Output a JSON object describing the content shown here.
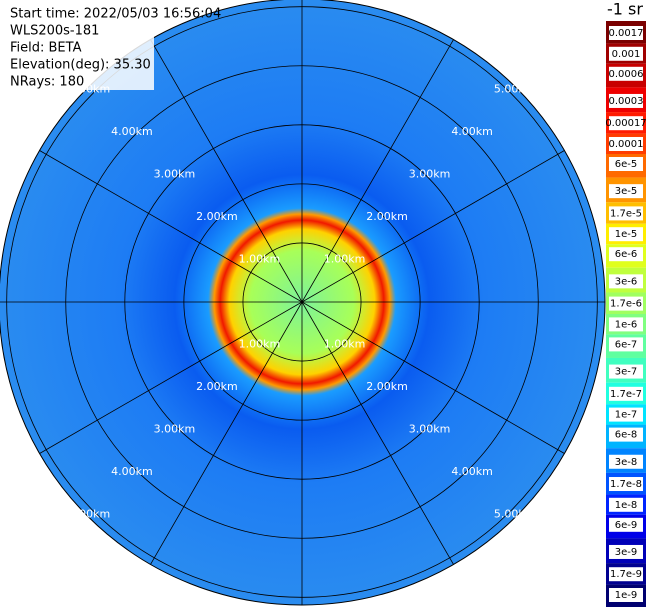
{
  "chart_data": {
    "type": "ppi",
    "info": [
      "Start time: 2022/05/03 16:56:04",
      "WLS200s-181",
      "Field: BETA",
      "Elevation(deg): 35.30",
      "NRays: 180"
    ],
    "rlim": [
      0,
      5.13
    ],
    "rticks": [
      {
        "value": 1,
        "label": "1.00km"
      },
      {
        "value": 2,
        "label": "2.00km"
      },
      {
        "value": 3,
        "label": "3.00km"
      },
      {
        "value": 4,
        "label": "4.00km"
      },
      {
        "value": 5,
        "label": "5.00km"
      }
    ],
    "colorbar": {
      "title": "-1 sr",
      "scale": "log",
      "lim": [
        1e-09,
        0.0017
      ],
      "ticks": [
        0.0017,
        0.001,
        0.0006,
        0.0003,
        0.00017,
        0.0001,
        {
          "value": 6e-05,
          "label": "6e-5"
        },
        {
          "value": 3e-05,
          "label": "3e-5"
        },
        {
          "value": 1.7e-05,
          "label": "1.7e-5"
        },
        {
          "value": 1e-05,
          "label": "1e-5"
        },
        {
          "value": 6e-06,
          "label": "6e-6"
        },
        {
          "value": 3e-06,
          "label": "3e-6"
        },
        {
          "value": 1.7e-06,
          "label": "1.7e-6"
        },
        {
          "value": 1e-06,
          "label": "1e-6"
        },
        {
          "value": 6e-07,
          "label": "6e-7"
        },
        {
          "value": 3e-07,
          "label": "3e-7"
        },
        {
          "value": 1.7e-07,
          "label": "1.7e-7"
        },
        {
          "value": 1e-07,
          "label": "1e-7"
        },
        {
          "value": 6e-08,
          "label": "6e-8"
        },
        {
          "value": 3e-08,
          "label": "3e-8"
        },
        {
          "value": 1.7e-08,
          "label": "1.7e-8"
        },
        {
          "value": 1e-08,
          "label": "1e-8"
        },
        {
          "value": 6e-09,
          "label": "6e-9"
        },
        {
          "value": 3e-09,
          "label": "3e-9"
        },
        {
          "value": 1.7e-09,
          "label": "1.7e-9"
        },
        {
          "value": 1e-09,
          "label": "1e-9"
        }
      ],
      "colors": [
        "#7a0000",
        "#a00000",
        "#c80000",
        "#ee0000",
        "#ff1a00",
        "#ff3c00",
        "#ff6a00",
        "#ff9400",
        "#ffbe00",
        "#ffee00",
        "#e0ff1e",
        "#c0ff3e",
        "#a0ff60",
        "#80ff80",
        "#60ffa0",
        "#40ffc0",
        "#20ffe0",
        "#00e4ff",
        "#00b4ff",
        "#0084ff",
        "#0054ff",
        "#0024ff",
        "#0000e8",
        "#0000b8",
        "#000090",
        "#000070"
      ]
    }
  }
}
